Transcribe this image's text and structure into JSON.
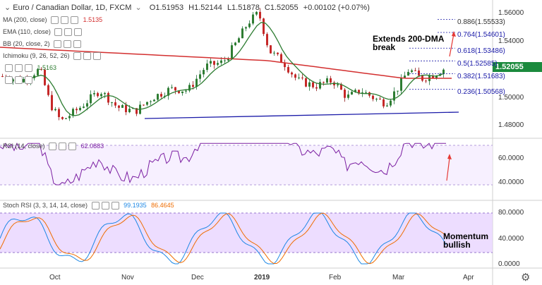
{
  "header": {
    "symbol_title": "Euro / Canadian Dollar, 1D, FXCM",
    "ohlc": {
      "o": "O1.51953",
      "h": "H1.52144",
      "l": "L1.51878",
      "c": "C1.52055",
      "chg": "+0.00102 (+0.07%)"
    }
  },
  "indicators": [
    {
      "label": "MA (200, close)",
      "value": "1.5135",
      "color": "#d32f2f"
    },
    {
      "label": "EMA (110, close)",
      "value": "",
      "color": "#2e7d32"
    },
    {
      "label": "BB (20, close, 2)",
      "value": "",
      "color": "#1565c0"
    },
    {
      "label": "Ichimoku (9, 26, 52, 26)",
      "value": "",
      "color": "#444"
    },
    {
      "label": "",
      "value": "1.5163",
      "color": "#2e7d32"
    },
    {
      "label": "",
      "value": "",
      "color": "#444"
    }
  ],
  "price_axis": {
    "ticks": [
      "1.56000",
      "1.54000",
      "1.52000",
      "1.50000",
      "1.48000"
    ],
    "current": "1.52055",
    "current_color": "#1b8a3d"
  },
  "fib_levels": [
    {
      "label": "0.886(1.55533)",
      "price": 1.55533
    },
    {
      "label": "0.764(1.54601)",
      "price": 1.54601
    },
    {
      "label": "0.618(1.53486)",
      "price": 1.53486
    },
    {
      "label": "0.5(1.52585)",
      "price": 1.52585
    },
    {
      "label": "0.382(1.51683)",
      "price": 1.51683
    },
    {
      "label": "0.236(1.50568)",
      "price": 1.50568
    }
  ],
  "annotations": {
    "dma_break": "Extends 200-DMA\nbreak",
    "momentum": "Momentum\nbullish"
  },
  "rsi": {
    "label": "RSI (14, close)",
    "value": "62.0883",
    "value_color": "#7b1fa2",
    "ticks": [
      "60.0000",
      "40.0000"
    ]
  },
  "stoch": {
    "label": "Stoch RSI (3, 3, 14, 14, close)",
    "k_value": "99.1935",
    "d_value": "86.4645",
    "k_color": "#1e88e5",
    "d_color": "#ef6c00",
    "ticks": [
      "80.0000",
      "40.0000",
      "0.0000"
    ]
  },
  "time_axis": {
    "labels": [
      "Oct",
      "Nov",
      "Dec",
      "2019",
      "Feb",
      "Mar",
      "Apr"
    ]
  },
  "footer": {
    "settings_icon": "gear-icon"
  }
}
